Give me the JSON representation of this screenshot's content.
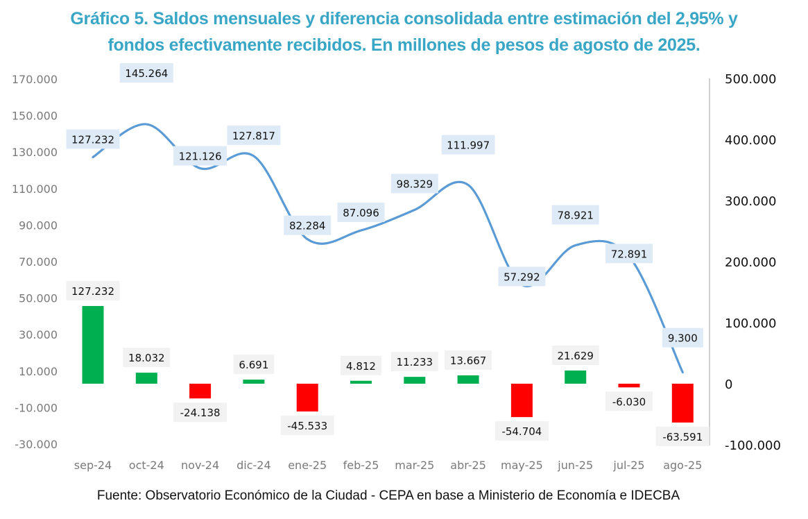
{
  "chart_data": {
    "type": "bar+line",
    "title_line1": "Gráfico 5. Saldos mensuales y diferencia consolidada entre estimación del 2,95% y",
    "title_line2": "fondos efectivamente recibidos. En millones de pesos de agosto de 2025.",
    "source": "Fuente: Observatorio Económico de la Ciudad - CEPA en base a Ministerio de Economía e IDECBA",
    "categories": [
      "sep-24",
      "oct-24",
      "nov-24",
      "dic-24",
      "ene-25",
      "feb-25",
      "mar-25",
      "abr-25",
      "may-25",
      "jun-25",
      "jul-25",
      "ago-25"
    ],
    "series": [
      {
        "name": "Saldo mensual",
        "type": "bar",
        "axis": "right",
        "values": [
          127232,
          18032,
          -24138,
          6691,
          -45533,
          4812,
          11233,
          13667,
          -54704,
          21629,
          -6030,
          -63591
        ],
        "labels": [
          "127.232",
          "18.032",
          "-24.138",
          "6.691",
          "-45.533",
          "4.812",
          "11.233",
          "13.667",
          "-54.704",
          "21.629",
          "-6.030",
          "-63.591"
        ],
        "positive_color": "#00b050",
        "negative_color": "#ff0000"
      },
      {
        "name": "Diferencia consolidada",
        "type": "line",
        "axis": "left",
        "smooth": true,
        "values": [
          127232,
          145264,
          121126,
          127817,
          82284,
          87096,
          98329,
          111997,
          57292,
          78921,
          72891,
          9300
        ],
        "labels": [
          "127.232",
          "145.264",
          "121.126",
          "127.817",
          "82.284",
          "87.096",
          "98.329",
          "111.997",
          "57.292",
          "78.921",
          "72.891",
          "9.300"
        ],
        "color": "#5b9bd5"
      }
    ],
    "left_axis": {
      "ylim": [
        -30000,
        170000
      ],
      "ticks": [
        170000,
        150000,
        130000,
        110000,
        90000,
        70000,
        50000,
        30000,
        10000,
        -10000,
        -30000
      ],
      "tick_labels": [
        "170.000",
        "150.000",
        "130.000",
        "110.000",
        "90.000",
        "70.000",
        "50.000",
        "30.000",
        "10.000",
        "-10.000",
        "-30.000"
      ]
    },
    "right_axis": {
      "ylim": [
        -100000,
        500000
      ],
      "ticks": [
        500000,
        400000,
        300000,
        200000,
        100000,
        0,
        -100000
      ],
      "tick_labels": [
        "500.000",
        "400.000",
        "300.000",
        "200.000",
        "100.000",
        "0",
        "-100.000"
      ]
    },
    "grid": false,
    "legend": "none"
  }
}
